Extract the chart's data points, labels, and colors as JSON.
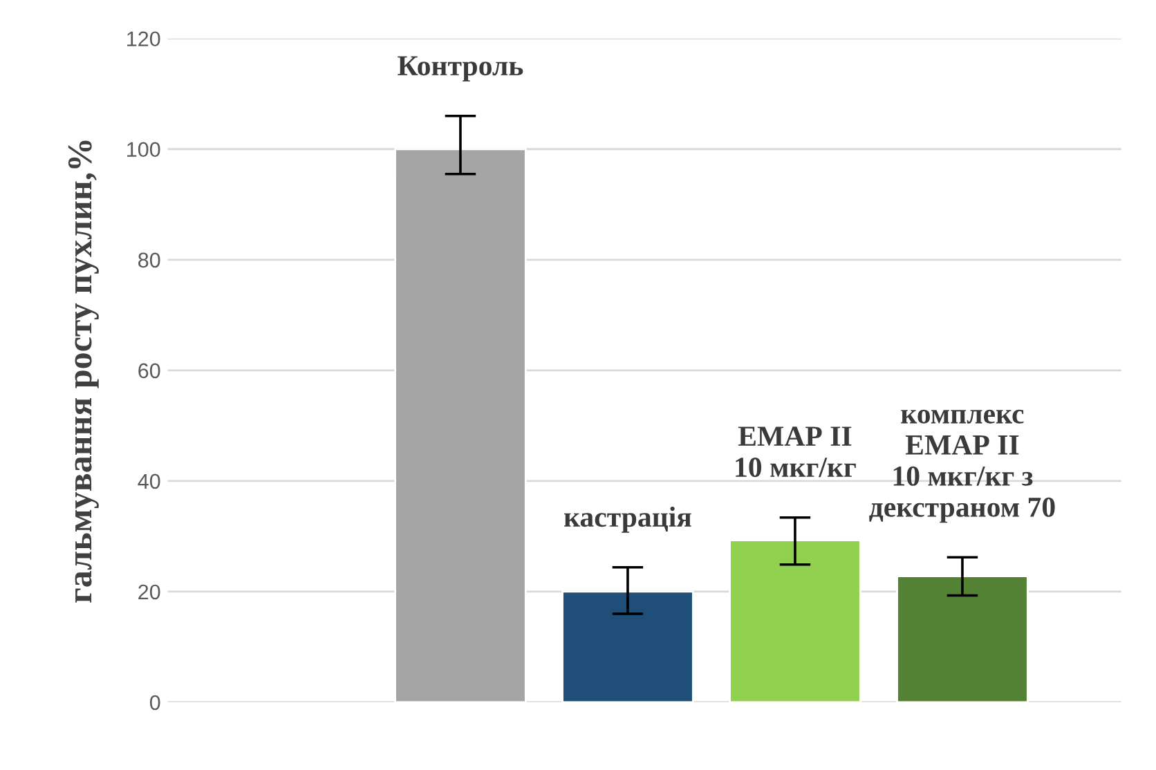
{
  "chart_data": {
    "type": "bar",
    "ylabel": "гальмування росту пухлин,%",
    "categories": [
      null,
      "Контроль",
      "кастрація",
      "ЕМАР ІІ\n10 мкг/кг",
      "комплекс\nЕМАР ІІ\n10 мкг/кг з\nдекстраном 70"
    ],
    "values": [
      null,
      100,
      20,
      29.3,
      22.8
    ],
    "errors": [
      null,
      [
        95.5,
        106
      ],
      [
        16,
        24.4
      ],
      [
        24.9,
        33.4
      ],
      [
        19.3,
        26.2
      ]
    ],
    "colors": [
      "#a5a5a5",
      "#a5a5a5",
      "#1f4e79",
      "#92d050",
      "#548235"
    ],
    "ylim": [
      0,
      120
    ],
    "yticks": [
      0,
      20,
      40,
      60,
      80,
      100,
      120
    ],
    "grid": "y"
  }
}
